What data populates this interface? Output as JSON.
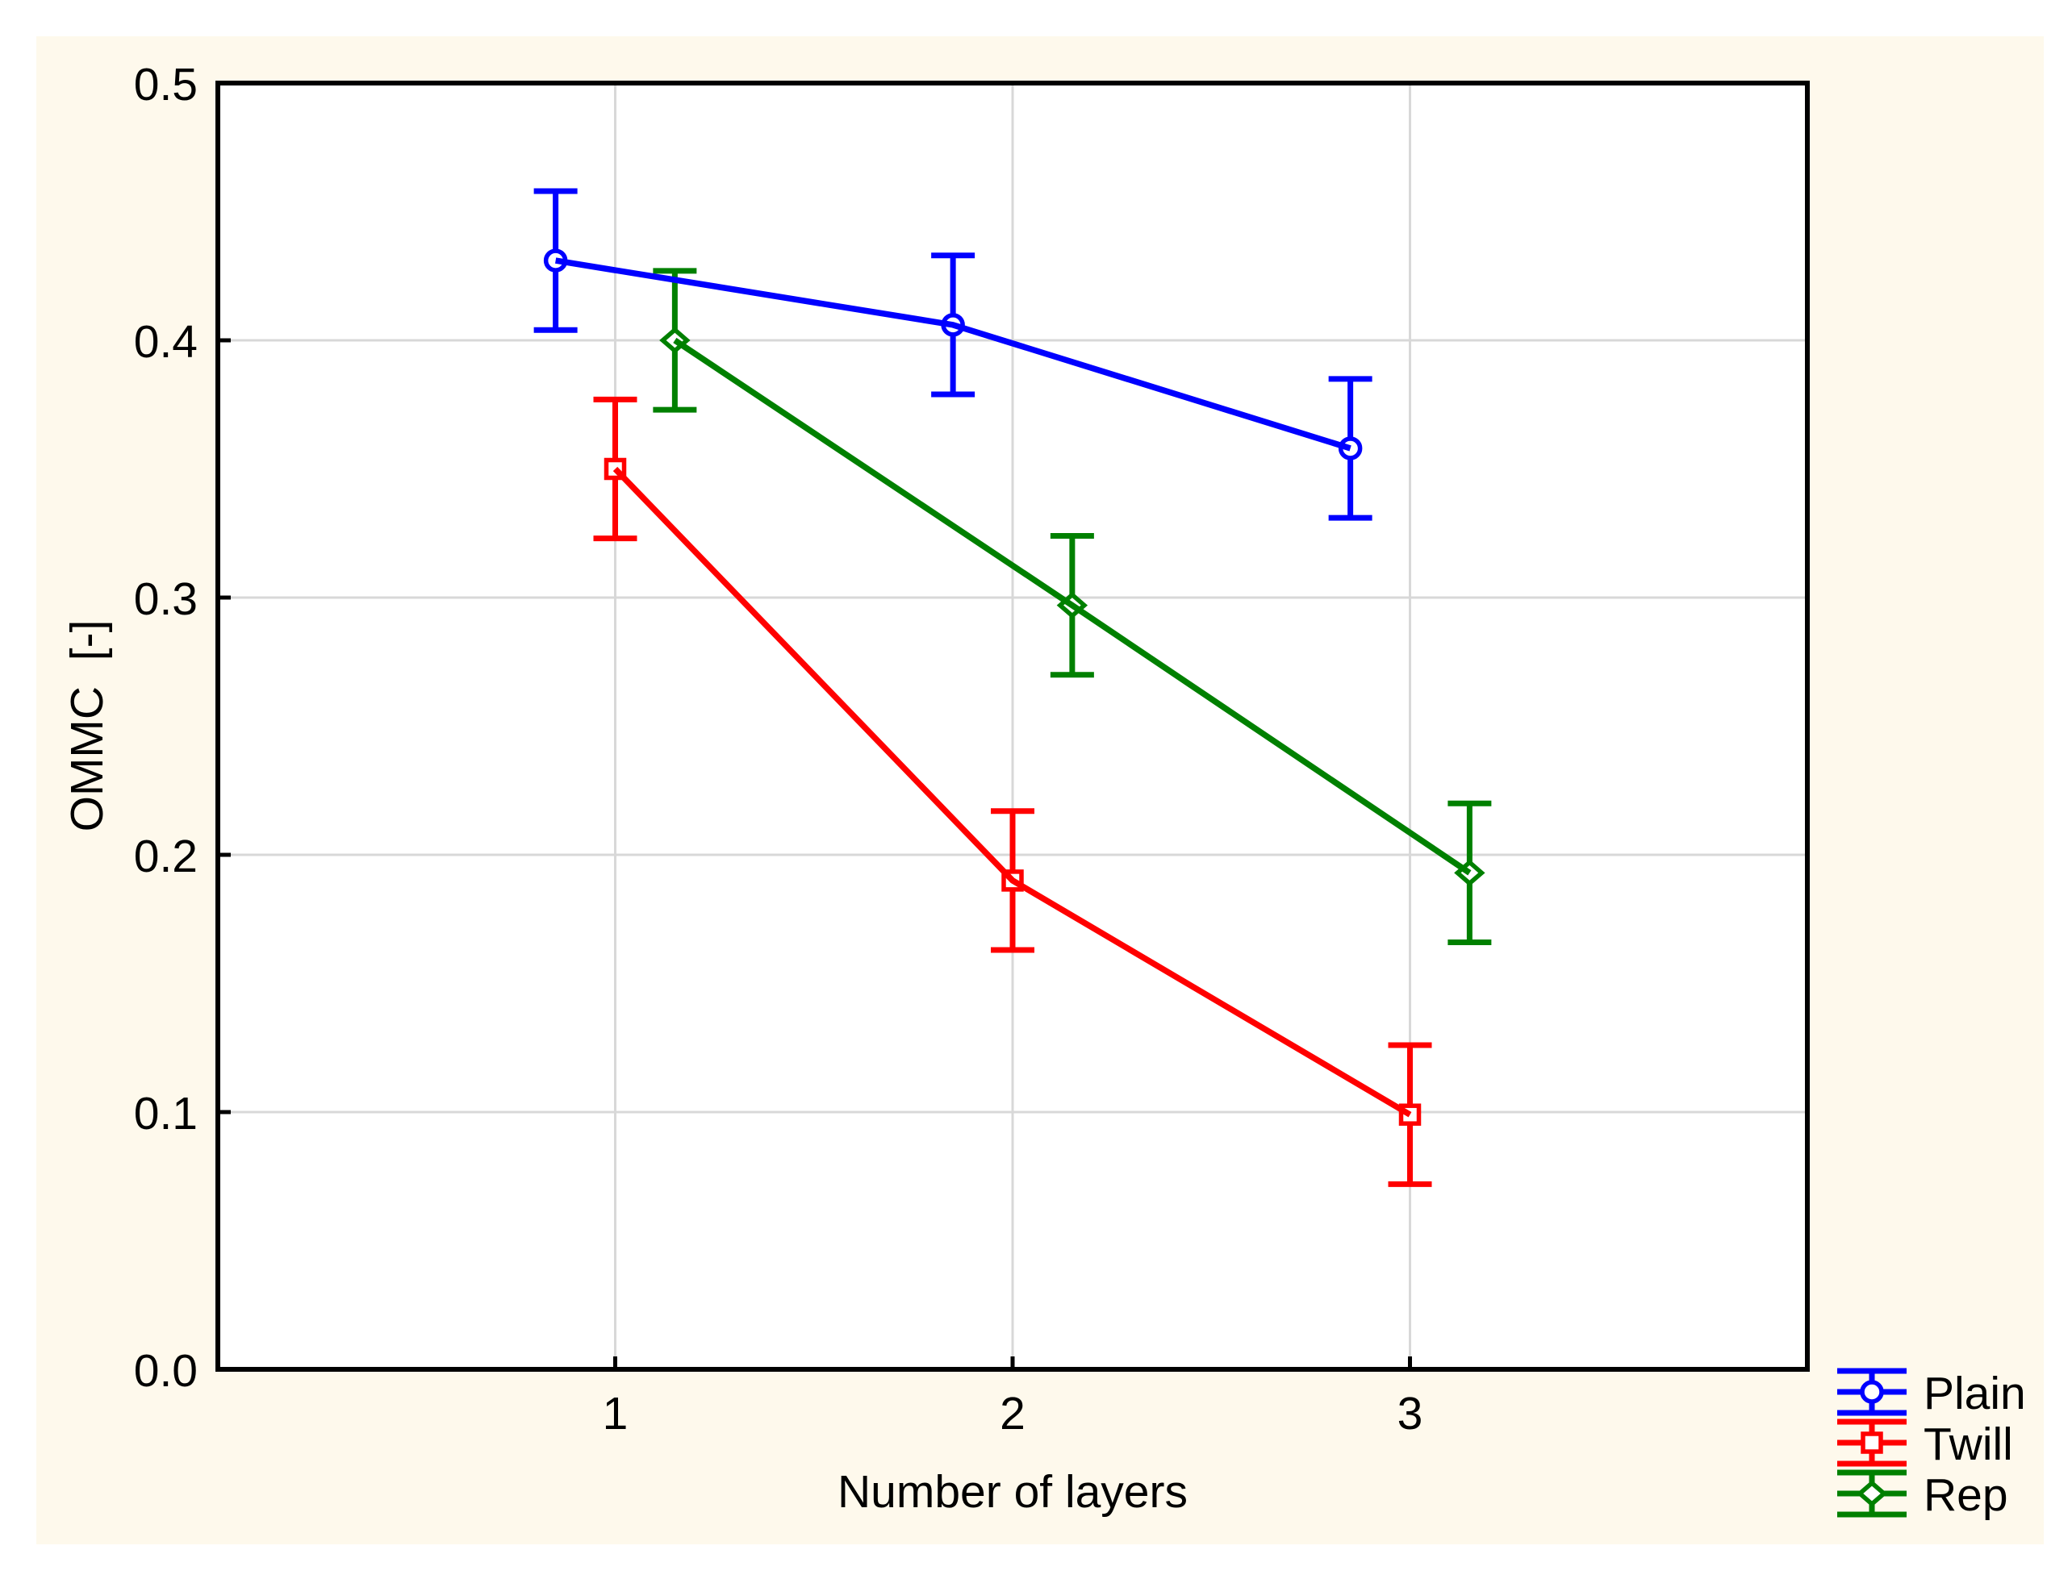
{
  "chart_data": {
    "type": "line",
    "title": "",
    "xlabel": "Number of layers",
    "ylabel": "OMMC  [-]",
    "xlim": [
      0,
      4
    ],
    "ylim": [
      0.0,
      0.5
    ],
    "grid": true,
    "xticks": [
      {
        "value": 1,
        "label": "1"
      },
      {
        "value": 2,
        "label": "2"
      },
      {
        "value": 3,
        "label": "3"
      }
    ],
    "yticks": [
      {
        "value": 0.0,
        "label": "0.0"
      },
      {
        "value": 0.1,
        "label": "0.1"
      },
      {
        "value": 0.2,
        "label": "0.2"
      },
      {
        "value": 0.3,
        "label": "0.3"
      },
      {
        "value": 0.4,
        "label": "0.4"
      },
      {
        "value": 0.5,
        "label": "0.5"
      }
    ],
    "legend": {
      "position": "bottom-right-outside",
      "entries": [
        "Plain",
        "Twill",
        "Rep"
      ]
    },
    "series": [
      {
        "name": "Plain",
        "color": "#0000FF",
        "marker": "circle",
        "points": [
          {
            "x": 0.85,
            "y": 0.431,
            "err": 0.027
          },
          {
            "x": 1.85,
            "y": 0.406,
            "err": 0.027
          },
          {
            "x": 2.85,
            "y": 0.358,
            "err": 0.027
          }
        ]
      },
      {
        "name": "Twill",
        "color": "#FF0000",
        "marker": "square",
        "points": [
          {
            "x": 1.0,
            "y": 0.35,
            "err": 0.027
          },
          {
            "x": 2.0,
            "y": 0.19,
            "err": 0.027
          },
          {
            "x": 3.0,
            "y": 0.099,
            "err": 0.027
          }
        ]
      },
      {
        "name": "Rep",
        "color": "#008000",
        "marker": "diamond",
        "points": [
          {
            "x": 1.15,
            "y": 0.4,
            "err": 0.027
          },
          {
            "x": 2.15,
            "y": 0.297,
            "err": 0.027
          },
          {
            "x": 3.15,
            "y": 0.193,
            "err": 0.027
          }
        ]
      }
    ],
    "colors": {
      "figure_background": "#FEF9EC",
      "plot_background": "#FFFFFF",
      "grid": "#D8D8D8",
      "axis": "#000000",
      "text": "#000000"
    }
  }
}
